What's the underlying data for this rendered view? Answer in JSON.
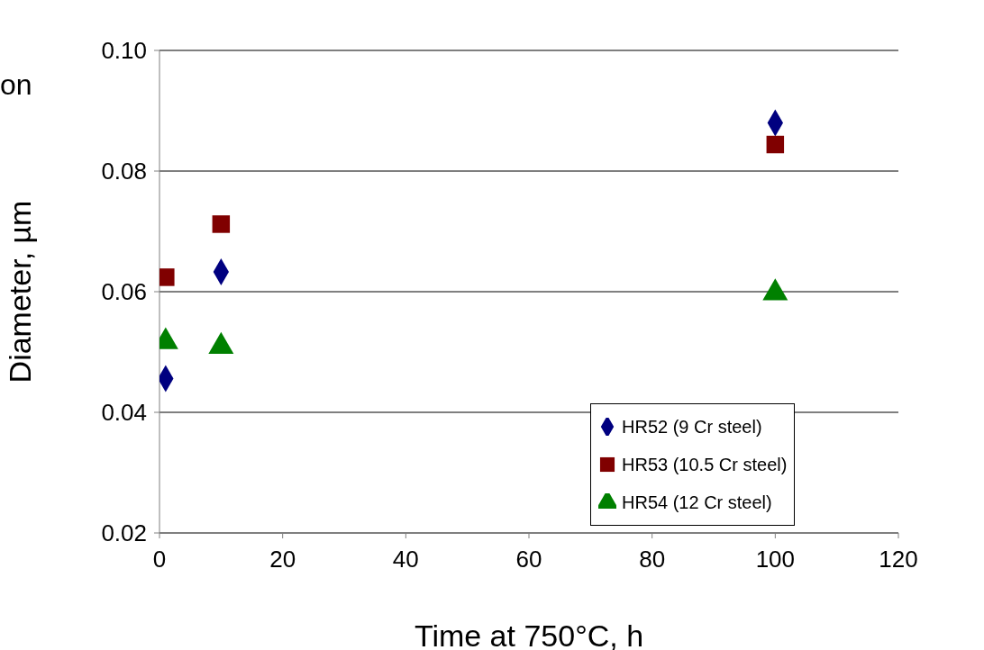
{
  "chart_data": {
    "type": "scatter",
    "xlabel": "Time at 750°C, h",
    "ylabel": "Diameter, µm",
    "annotations": [
      "on"
    ],
    "xlim": [
      0,
      120
    ],
    "xticks": [
      0,
      20,
      40,
      60,
      80,
      100,
      120
    ],
    "ylim": [
      0.02,
      0.1
    ],
    "yticks": [
      0.02,
      0.04,
      0.06,
      0.08,
      {
        "value": 0.1,
        "label": "0.10"
      }
    ],
    "grid": "y",
    "legend": "bottom right",
    "series": [
      {
        "name": "HR52 (9 Cr steel)",
        "color": "#000080",
        "marker": "diamond",
        "x": [
          1,
          10,
          100
        ],
        "values": [
          0.0456,
          0.0633,
          0.088
        ]
      },
      {
        "name": "HR53 (10.5 Cr steel)",
        "color": "#800000",
        "marker": "square",
        "x": [
          1,
          10,
          100
        ],
        "values": [
          0.0624,
          0.0712,
          0.0844
        ]
      },
      {
        "name": "HR54 (12 Cr steel)",
        "color": "#008000",
        "marker": "triangle",
        "x": [
          1,
          10,
          100
        ],
        "values": [
          0.0517,
          0.0509,
          0.0598
        ]
      }
    ]
  }
}
